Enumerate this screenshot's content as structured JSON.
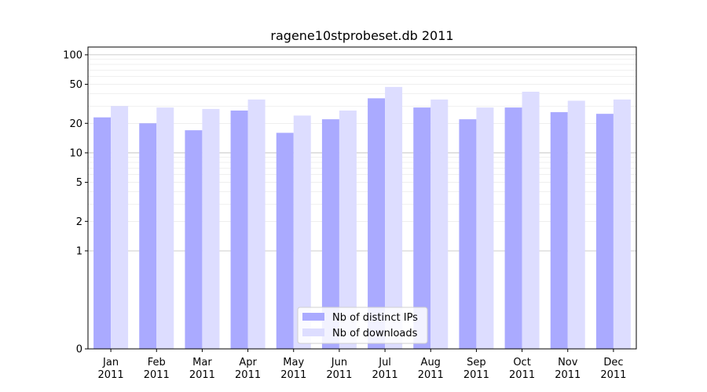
{
  "chart_data": {
    "type": "bar",
    "title": "ragene10stprobeset.db 2011",
    "xlabel": "",
    "ylabel": "",
    "y_scale": "symlog",
    "ylim": [
      0,
      120
    ],
    "y_ticks": [
      0,
      1,
      2,
      5,
      10,
      20,
      50,
      100
    ],
    "grid": "horizontal",
    "categories": [
      "Jan\n2011",
      "Feb\n2011",
      "Mar\n2011",
      "Apr\n2011",
      "May\n2011",
      "Jun\n2011",
      "Jul\n2011",
      "Aug\n2011",
      "Sep\n2011",
      "Oct\n2011",
      "Nov\n2011",
      "Dec\n2011"
    ],
    "series": [
      {
        "name": "Nb of distinct IPs",
        "color": "#aaaaff",
        "values": [
          23,
          20,
          17,
          27,
          16,
          22,
          36,
          29,
          22,
          29,
          26,
          25
        ]
      },
      {
        "name": "Nb of downloads",
        "color": "#ddddff",
        "values": [
          30,
          29,
          28,
          35,
          24,
          27,
          47,
          35,
          29,
          42,
          34,
          35
        ]
      }
    ],
    "legend_position": "lower-center"
  }
}
